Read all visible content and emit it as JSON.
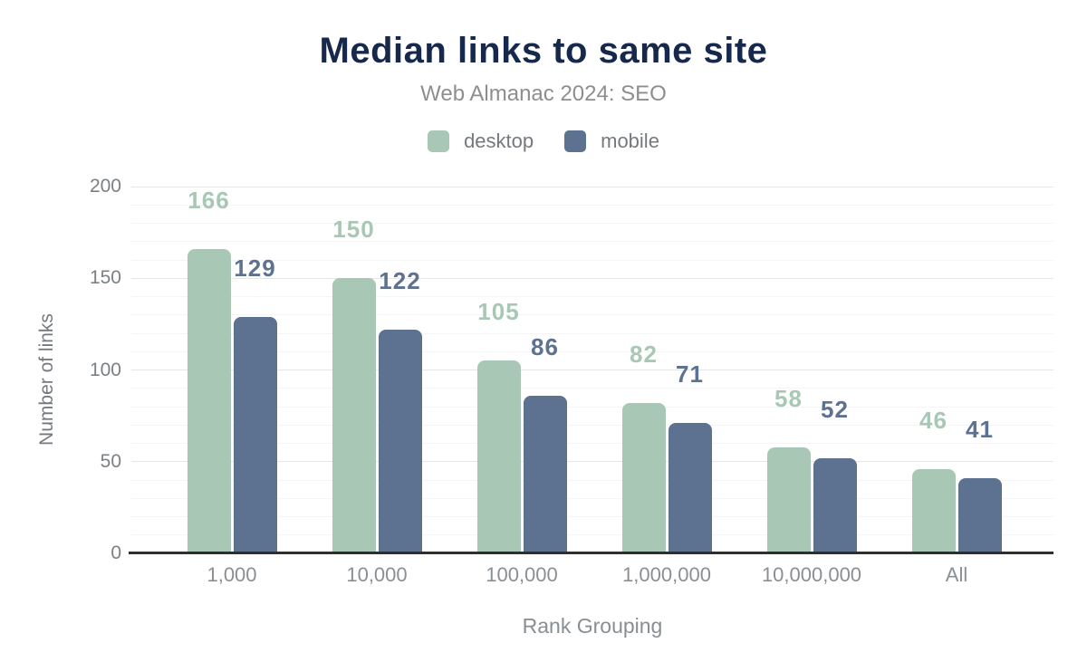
{
  "header": {
    "title": "Median links to same site",
    "subtitle": "Web Almanac 2024: SEO"
  },
  "axes": {
    "y_title": "Number of links",
    "x_title": "Rank Grouping"
  },
  "chart_data": {
    "type": "bar",
    "title": "Median links to same site",
    "subtitle": "Web Almanac 2024: SEO",
    "categories": [
      "1,000",
      "10,000",
      "100,000",
      "1,000,000",
      "10,000,000",
      "All"
    ],
    "series": [
      {
        "name": "desktop",
        "color": "#a8c8b5",
        "values": [
          166,
          150,
          105,
          82,
          58,
          46
        ]
      },
      {
        "name": "mobile",
        "color": "#5d7191",
        "values": [
          129,
          122,
          86,
          71,
          52,
          41
        ]
      }
    ],
    "xlabel": "Rank Grouping",
    "ylabel": "Number of links",
    "ylim": [
      0,
      200
    ],
    "yticks": [
      0,
      50,
      100,
      150,
      200
    ],
    "ytick_labels": [
      "0",
      "50",
      "100",
      "150",
      "200"
    ],
    "minor_grid_step": 10,
    "major_grid_step": 50,
    "grid": true,
    "legend_position": "top",
    "value_labels": true,
    "colors": {
      "title": "#16294d",
      "subtitle": "#8e8e8e",
      "axis_text": "#7b8085",
      "axis_line": "#2f2f2f",
      "grid_major": "#e6e6e6",
      "grid_minor": "#f4f4f4",
      "background": "#ffffff"
    }
  }
}
